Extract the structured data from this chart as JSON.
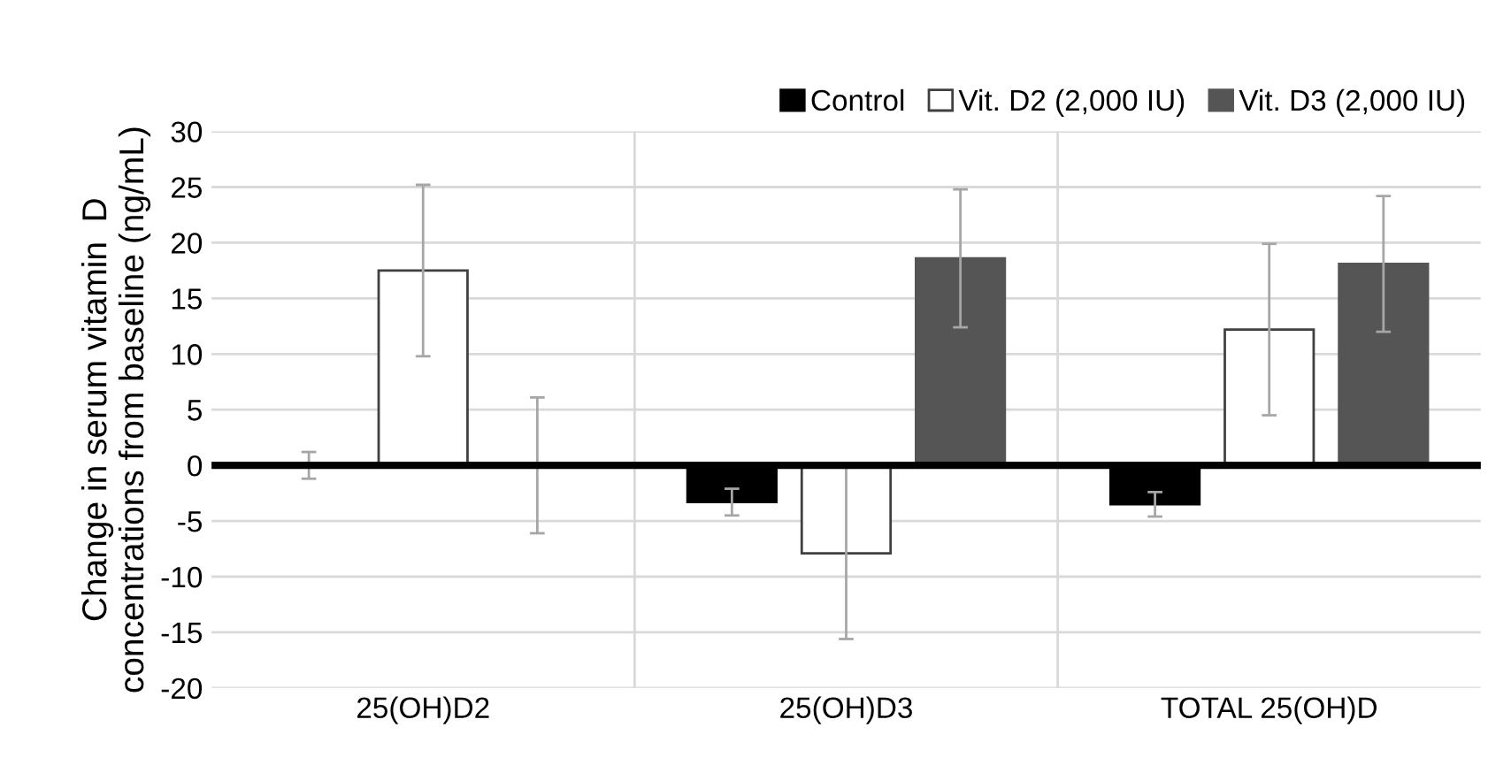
{
  "chart_data": {
    "type": "bar",
    "ylabel": "Change in serum vitamin  D\nconcentrations from baseline (ng/mL)",
    "categories": [
      "25(OH)D2",
      "25(OH)D3",
      "TOTAL 25(OH)D"
    ],
    "series": [
      {
        "name": "Control",
        "color": "#000000",
        "values": [
          0,
          -3.3,
          -3.5
        ],
        "errors": [
          1.2,
          1.2,
          1.1
        ]
      },
      {
        "name": "Vit. D2 (2,000 IU)",
        "color": "#ffffff",
        "values": [
          17.5,
          -7.9,
          12.2
        ],
        "errors": [
          7.7,
          7.7,
          7.7
        ]
      },
      {
        "name": "Vit. D3 (2,000 IU)",
        "color": "#555555",
        "values": [
          0,
          18.6,
          18.1
        ],
        "errors": [
          6.1,
          6.2,
          6.1
        ]
      }
    ],
    "ylim": [
      -20,
      30
    ],
    "yticks": [
      -20,
      -15,
      -10,
      -5,
      0,
      5,
      10,
      15,
      20,
      25,
      30
    ],
    "ref_lines": [
      {
        "axis": "y",
        "value": 0,
        "color": "#000000"
      }
    ],
    "grid": true,
    "legend": "top right"
  }
}
